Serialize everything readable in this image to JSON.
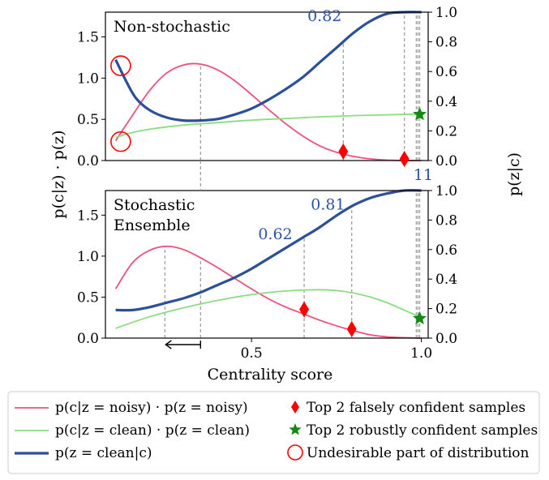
{
  "colors": {
    "noisy": "#f0507a",
    "clean": "#8cdc82",
    "posterior": "#2b4f99",
    "falsely_confident": "#ff0000",
    "robustly_confident": "#138a13",
    "undesirable": "#ff0000",
    "annotation_text": "#2b55a8",
    "guide": "#999999"
  },
  "chart_data": [
    {
      "type": "line",
      "panel": "top",
      "title": "Non-stochastic",
      "xlabel": "",
      "ylabel": "",
      "y2label": "",
      "xlim": [
        0.07,
        1.02
      ],
      "ylim": [
        0,
        1.8
      ],
      "y2lim": [
        0,
        1.0
      ],
      "yticks": [
        "0.0",
        "0.5",
        "1.0",
        "1.5"
      ],
      "y2ticks": [
        "0.0",
        "0.2",
        "0.4",
        "0.6",
        "0.8",
        "1.0"
      ],
      "series": [
        {
          "key": "noisy",
          "axis": "left",
          "x": [
            0.1,
            0.15,
            0.2,
            0.25,
            0.3,
            0.35,
            0.4,
            0.45,
            0.5,
            0.55,
            0.6,
            0.65,
            0.7,
            0.75,
            0.8,
            0.85,
            0.9,
            0.95,
            1.0
          ],
          "y": [
            0.24,
            0.55,
            0.85,
            1.06,
            1.16,
            1.17,
            1.1,
            0.97,
            0.8,
            0.62,
            0.45,
            0.3,
            0.18,
            0.1,
            0.05,
            0.02,
            0.005,
            0.0,
            0.0
          ]
        },
        {
          "key": "clean",
          "axis": "left",
          "x": [
            0.1,
            0.15,
            0.2,
            0.3,
            0.4,
            0.5,
            0.6,
            0.7,
            0.8,
            0.9,
            1.0
          ],
          "y": [
            0.28,
            0.34,
            0.38,
            0.43,
            0.46,
            0.49,
            0.51,
            0.53,
            0.545,
            0.555,
            0.565
          ]
        },
        {
          "key": "posterior",
          "axis": "right",
          "x": [
            0.1,
            0.13,
            0.16,
            0.2,
            0.25,
            0.3,
            0.35,
            0.4,
            0.45,
            0.5,
            0.55,
            0.6,
            0.65,
            0.7,
            0.75,
            0.8,
            0.85,
            0.9,
            0.95,
            1.0
          ],
          "y": [
            0.68,
            0.54,
            0.42,
            0.34,
            0.29,
            0.27,
            0.27,
            0.28,
            0.31,
            0.35,
            0.41,
            0.48,
            0.56,
            0.66,
            0.76,
            0.86,
            0.94,
            0.99,
            1.0,
            1.0
          ]
        }
      ],
      "guides": [
        0.35,
        0.77,
        0.95,
        0.985,
        0.99,
        0.995
      ],
      "falsely_confident": [
        {
          "x": 0.77,
          "y": 0.11
        },
        {
          "x": 0.95,
          "y": 0.02
        }
      ],
      "robustly_confident": [
        {
          "x": 0.995,
          "y": 0.56
        }
      ],
      "undesirable": [
        {
          "x": 0.115,
          "y": 1.15
        },
        {
          "x": 0.115,
          "y": 0.23
        }
      ],
      "annotations": [
        {
          "text": "0.82",
          "x": 0.715,
          "y2": 0.94
        }
      ]
    },
    {
      "type": "line",
      "panel": "bottom",
      "title": "Stochastic\nEnsemble",
      "xlabel": "Centrality score",
      "xlim": [
        0.07,
        1.02
      ],
      "ylim": [
        0,
        1.8
      ],
      "y2lim": [
        0,
        1.0
      ],
      "xticks": [
        "0.5",
        "1.0"
      ],
      "yticks": [
        "0.0",
        "0.5",
        "1.0",
        "1.5"
      ],
      "y2ticks": [
        "0.0",
        "0.2",
        "0.4",
        "0.6",
        "0.8",
        "1.0"
      ],
      "series": [
        {
          "key": "noisy",
          "axis": "left",
          "x": [
            0.1,
            0.15,
            0.2,
            0.25,
            0.3,
            0.35,
            0.4,
            0.45,
            0.5,
            0.55,
            0.6,
            0.65,
            0.7,
            0.75,
            0.8,
            0.85,
            0.9,
            0.95,
            1.0
          ],
          "y": [
            0.6,
            0.92,
            1.07,
            1.12,
            1.08,
            0.98,
            0.86,
            0.73,
            0.6,
            0.48,
            0.38,
            0.3,
            0.22,
            0.15,
            0.09,
            0.04,
            0.015,
            0.005,
            0.0
          ]
        },
        {
          "key": "clean",
          "axis": "left",
          "x": [
            0.1,
            0.2,
            0.3,
            0.4,
            0.5,
            0.6,
            0.7,
            0.75,
            0.8,
            0.85,
            0.9,
            0.95,
            1.0
          ],
          "y": [
            0.12,
            0.26,
            0.37,
            0.46,
            0.53,
            0.575,
            0.59,
            0.58,
            0.55,
            0.5,
            0.43,
            0.34,
            0.25
          ]
        },
        {
          "key": "posterior",
          "axis": "right",
          "x": [
            0.1,
            0.15,
            0.2,
            0.25,
            0.3,
            0.35,
            0.4,
            0.45,
            0.5,
            0.55,
            0.6,
            0.65,
            0.7,
            0.75,
            0.8,
            0.85,
            0.9,
            0.95,
            1.0
          ],
          "y": [
            0.19,
            0.19,
            0.21,
            0.24,
            0.27,
            0.31,
            0.36,
            0.41,
            0.47,
            0.54,
            0.61,
            0.68,
            0.75,
            0.83,
            0.9,
            0.95,
            0.98,
            1.0,
            1.0
          ]
        }
      ],
      "guides": [
        0.245,
        0.35,
        0.655,
        0.795,
        0.985,
        0.99,
        0.995
      ],
      "falsely_confident": [
        {
          "x": 0.655,
          "y": 0.35
        },
        {
          "x": 0.795,
          "y": 0.11
        }
      ],
      "robustly_confident": [
        {
          "x": 0.995,
          "y": 0.24
        }
      ],
      "annotations": [
        {
          "text": "0.62",
          "x": 0.57,
          "y2": 0.67
        },
        {
          "text": "0.81",
          "x": 0.725,
          "y2": 0.87
        }
      ],
      "arrow": {
        "from": 0.35,
        "to": 0.245
      }
    }
  ],
  "shared_axes": {
    "left_ylabel": "p(c|z) · p(z)",
    "right_ylabel": "p(z|c)",
    "top_xtick_partial": "11"
  },
  "legend": {
    "items": [
      {
        "key": "noisy",
        "label": "p(c|z = noisy) · p(z = noisy)"
      },
      {
        "key": "falsely",
        "label": "Top 2 falsely confident samples"
      },
      {
        "key": "clean",
        "label": "p(c|z = clean) · p(z = clean)"
      },
      {
        "key": "robustly",
        "label": "Top 2 robustly confident samples"
      },
      {
        "key": "posterior",
        "label": "p(z = clean|c)"
      },
      {
        "key": "undesirable",
        "label": "Undesirable part of distribution"
      }
    ]
  }
}
